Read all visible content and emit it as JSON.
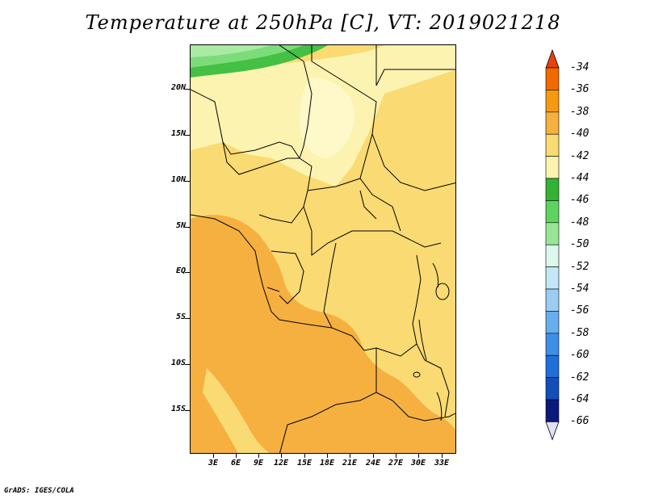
{
  "title": "Temperature at 250hPa [C], VT: 2019021218",
  "credit": "GrADS: IGES/COLA",
  "map": {
    "lat_labels": [
      "20N",
      "15N",
      "10N",
      "5N",
      "EQ",
      "5S",
      "10S",
      "15S"
    ],
    "lon_labels": [
      "3E",
      "6E",
      "9E",
      "12E",
      "15E",
      "18E",
      "21E",
      "24E",
      "27E",
      "30E",
      "33E"
    ],
    "field_colors": {
      "band_minus36_38": "#f5b040",
      "band_minus38_40": "#fada73",
      "band_minus40_42": "#fdf3b0",
      "band_minus42_44": "#fff8c8",
      "band_minus44_46": "#44c044",
      "band_minus46_48": "#7ddc7a",
      "band_minus48_50": "#a9eba2"
    }
  },
  "colorbar": {
    "labels": [
      "-34",
      "-36",
      "-38",
      "-40",
      "-42",
      "-44",
      "-46",
      "-48",
      "-50",
      "-52",
      "-54",
      "-56",
      "-58",
      "-60",
      "-62",
      "-64",
      "-66"
    ],
    "colors": [
      "#e8410a",
      "#f06a00",
      "#f59a10",
      "#f5b040",
      "#fada73",
      "#fdf3b0",
      "#33b233",
      "#5fd35f",
      "#98e695",
      "#dcf7ec",
      "#c4e6f7",
      "#99cdf2",
      "#68aeee",
      "#3e8ee6",
      "#1f6fd9",
      "#124fb8",
      "#0a1a7a"
    ],
    "top_arrow_color": "#e8410a",
    "bottom_arrow_color": "#e0e0f8"
  }
}
